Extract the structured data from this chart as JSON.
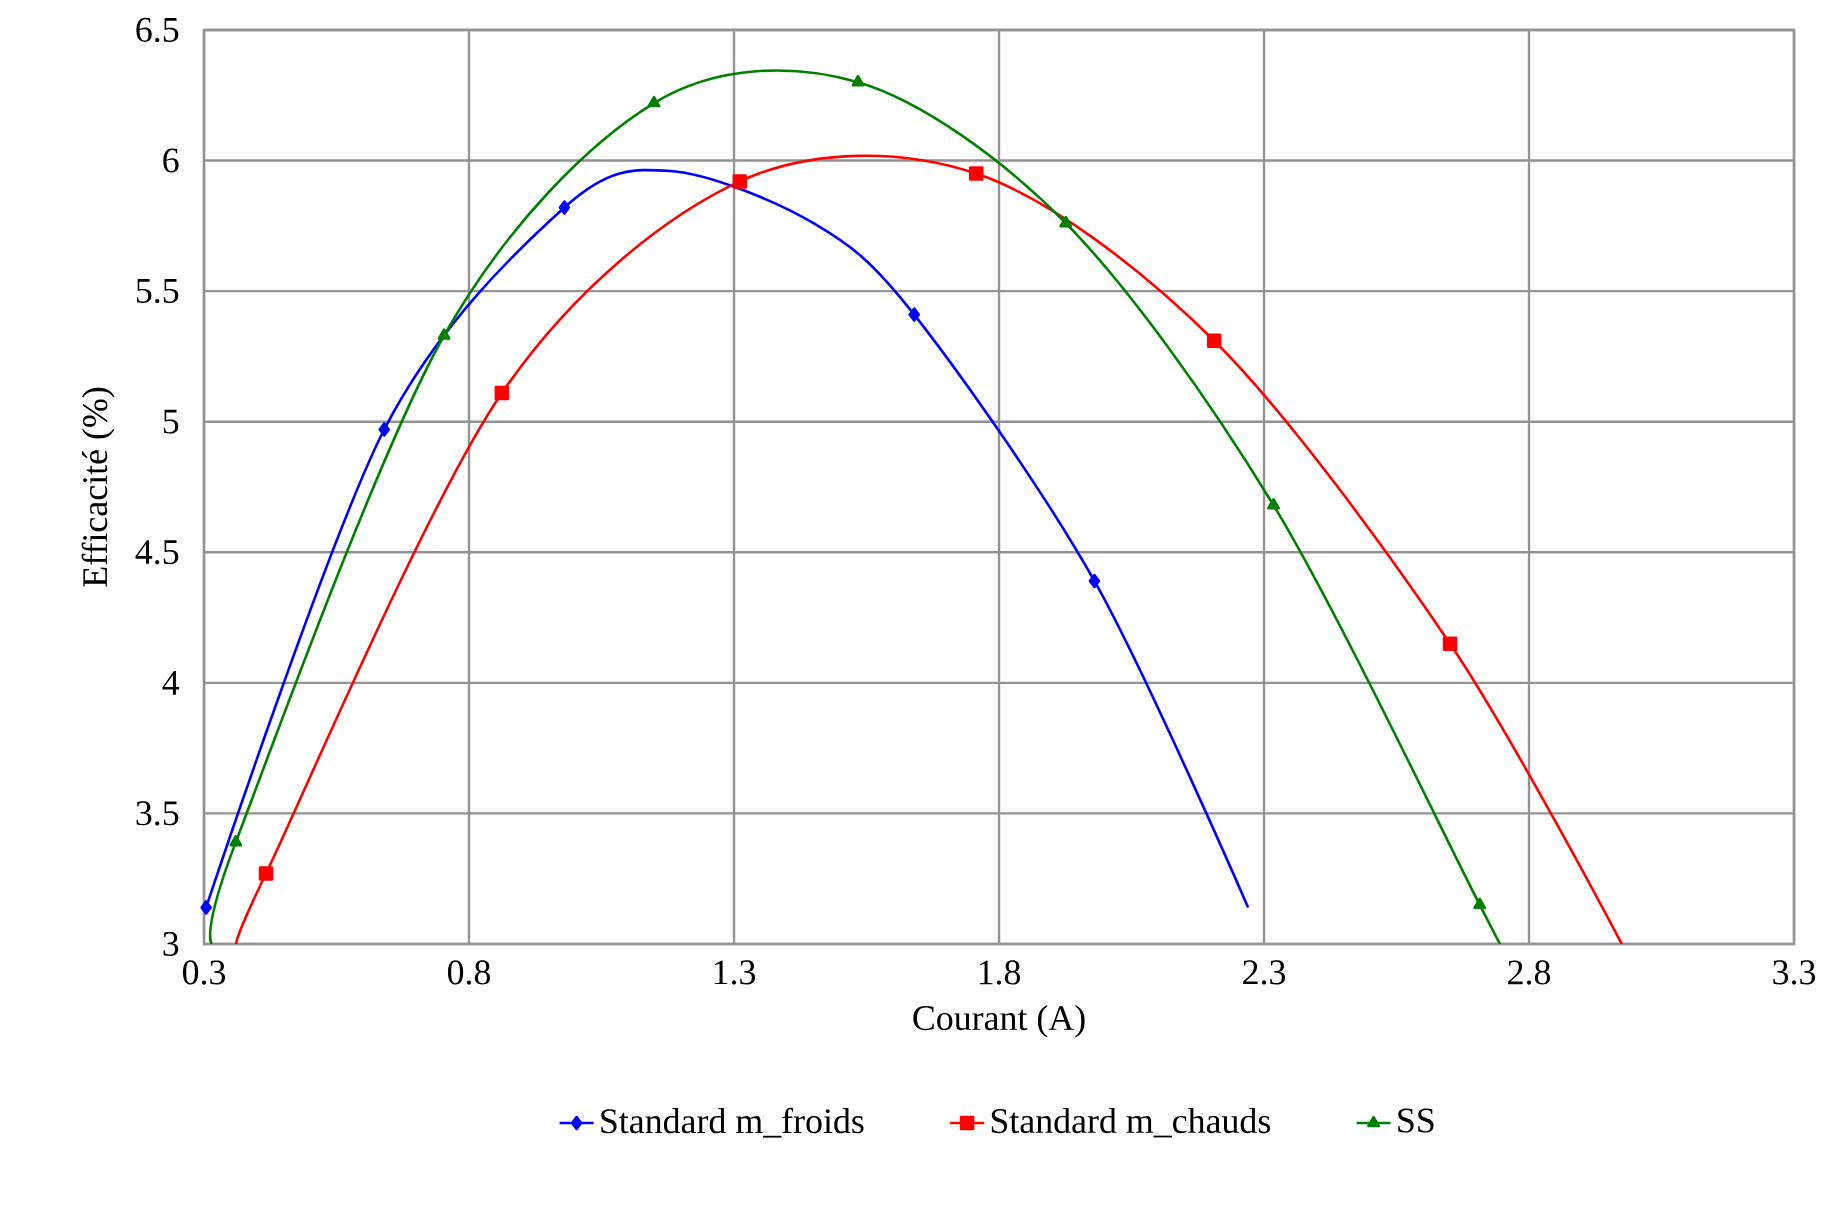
{
  "chart_data": {
    "type": "line",
    "xlabel": "Courant (A)",
    "ylabel": "Efficacité (%)",
    "xlim": [
      0.3,
      3.3
    ],
    "xticks": [
      0.3,
      0.8,
      1.3,
      1.8,
      2.3,
      2.8,
      3.3
    ],
    "ylim": [
      3,
      6.5
    ],
    "yticks": [
      3,
      3.5,
      4,
      4.5,
      5,
      5.5,
      6,
      6.5
    ],
    "grid": true,
    "legend": "bottom",
    "line_style": "solid",
    "series": [
      {
        "name": "Standard m_froids",
        "type": "scatter",
        "color": "#0000ff",
        "marker": "diamond",
        "x": [
          0.304,
          0.64,
          0.98,
          1.31,
          1.64,
          1.98
        ],
        "values": [
          3.14,
          4.97,
          5.82,
          null,
          5.41,
          4.39
        ]
      },
      {
        "name": "Standard m_chauds",
        "type": "scatter",
        "color": "#ff0000",
        "marker": "square",
        "x": [
          0.417,
          0.862,
          1.311,
          1.757,
          2.206,
          2.651
        ],
        "values": [
          3.27,
          5.11,
          5.92,
          5.95,
          5.31,
          4.15
        ]
      },
      {
        "name": "SS",
        "type": "scatter",
        "color": "#008000",
        "marker": "triangle",
        "x": [
          0.36,
          0.753,
          1.149,
          1.534,
          1.926,
          2.318,
          2.707
        ],
        "values": [
          3.39,
          5.33,
          6.22,
          6.3,
          5.76,
          4.68,
          3.15
        ]
      },
      {
        "color": "#0000ff",
        "marker": "none",
        "x": [
          0.304,
          0.64,
          0.98,
          1.18,
          1.45,
          1.64,
          1.98,
          2.27
        ],
        "values": [
          3.14,
          4.97,
          5.82,
          5.96,
          5.76,
          5.41,
          4.39,
          3.14
        ]
      },
      {
        "color": "#ff0000",
        "marker": "none",
        "x": [
          0.364,
          0.417,
          0.862,
          1.311,
          1.757,
          2.206,
          2.651,
          2.975
        ],
        "values": [
          3.0,
          3.27,
          5.11,
          5.92,
          5.95,
          5.31,
          4.15,
          3.0
        ]
      },
      {
        "color": "#008000",
        "marker": "none",
        "x": [
          0.315,
          0.36,
          0.753,
          1.149,
          1.534,
          1.926,
          2.318,
          2.707,
          2.745
        ],
        "values": [
          3.0,
          3.39,
          5.33,
          6.22,
          6.3,
          5.76,
          4.68,
          3.15,
          3.0
        ]
      }
    ]
  }
}
